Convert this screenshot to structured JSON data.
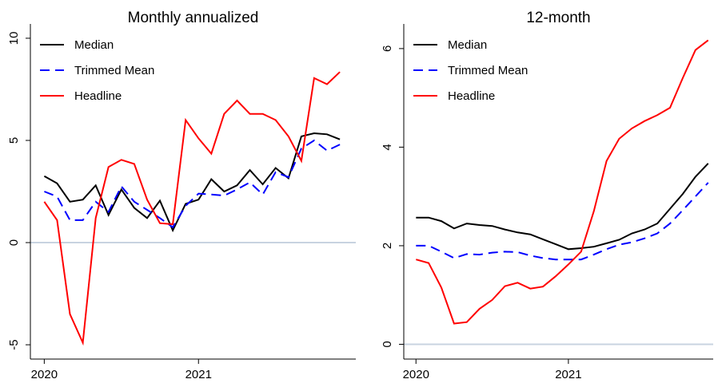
{
  "chart_data": [
    {
      "type": "line",
      "title": "Monthly annualized",
      "x": [
        2020,
        2020.0833,
        2020.1667,
        2020.25,
        2020.3333,
        2020.4167,
        2020.5,
        2020.5833,
        2020.6667,
        2020.75,
        2020.8333,
        2020.9167,
        2021,
        2021.0833,
        2021.1667,
        2021.25,
        2021.3333,
        2021.4167,
        2021.5,
        2021.5833,
        2021.6667,
        2021.75,
        2021.8333,
        2021.9167
      ],
      "series": [
        {
          "name": "Median",
          "color": "#000000",
          "dash": false,
          "values": [
            3.25,
            2.9,
            2.0,
            2.1,
            2.8,
            1.35,
            2.6,
            1.7,
            1.2,
            2.05,
            0.6,
            1.9,
            2.1,
            3.1,
            2.5,
            2.8,
            3.55,
            2.85,
            3.65,
            3.15,
            5.2,
            5.35,
            5.3,
            5.05
          ]
        },
        {
          "name": "Trimmed Mean",
          "color": "#0000ff",
          "dash": true,
          "values": [
            2.5,
            2.25,
            1.1,
            1.1,
            2.0,
            1.5,
            2.75,
            2.0,
            1.6,
            1.2,
            0.75,
            1.8,
            2.4,
            2.35,
            2.3,
            2.6,
            2.95,
            2.35,
            3.45,
            3.2,
            4.6,
            5.0,
            4.5,
            4.8
          ]
        },
        {
          "name": "Headline",
          "color": "#ff0000",
          "dash": false,
          "values": [
            2.0,
            1.1,
            -3.5,
            -4.9,
            1.2,
            3.7,
            4.05,
            3.85,
            2.1,
            0.95,
            0.9,
            6.0,
            5.1,
            4.35,
            6.3,
            6.95,
            6.3,
            6.3,
            6.0,
            5.2,
            4.0,
            8.05,
            7.75,
            8.35
          ]
        }
      ],
      "xlim": [
        2019.91,
        2022.02
      ],
      "xticks": [
        2020,
        2021
      ],
      "ylim": [
        -5.7,
        10.7
      ],
      "yticks": [
        -5,
        0,
        5,
        10
      ],
      "legend": "upper-left",
      "zero_line_color": "#c8d3e0"
    },
    {
      "type": "line",
      "title": "12-month",
      "x": [
        2020,
        2020.0833,
        2020.1667,
        2020.25,
        2020.3333,
        2020.4167,
        2020.5,
        2020.5833,
        2020.6667,
        2020.75,
        2020.8333,
        2020.9167,
        2021,
        2021.0833,
        2021.1667,
        2021.25,
        2021.3333,
        2021.4167,
        2021.5,
        2021.5833,
        2021.6667,
        2021.75,
        2021.8333,
        2021.9167
      ],
      "series": [
        {
          "name": "Median",
          "color": "#000000",
          "dash": false,
          "values": [
            2.57,
            2.57,
            2.5,
            2.35,
            2.45,
            2.42,
            2.4,
            2.33,
            2.27,
            2.23,
            2.13,
            2.03,
            1.93,
            1.95,
            1.98,
            2.05,
            2.12,
            2.25,
            2.33,
            2.45,
            2.75,
            3.05,
            3.4,
            3.67
          ]
        },
        {
          "name": "Trimmed Mean",
          "color": "#0000ff",
          "dash": true,
          "values": [
            2.0,
            2.0,
            1.88,
            1.75,
            1.83,
            1.82,
            1.86,
            1.88,
            1.87,
            1.8,
            1.75,
            1.72,
            1.72,
            1.72,
            1.82,
            1.93,
            2.02,
            2.07,
            2.15,
            2.25,
            2.45,
            2.72,
            3.0,
            3.28
          ]
        },
        {
          "name": "Headline",
          "color": "#ff0000",
          "dash": false,
          "values": [
            1.72,
            1.65,
            1.15,
            0.42,
            0.45,
            0.72,
            0.9,
            1.18,
            1.25,
            1.13,
            1.17,
            1.38,
            1.62,
            1.88,
            2.7,
            3.72,
            4.17,
            4.38,
            4.53,
            4.65,
            4.8,
            5.4,
            5.97,
            6.17
          ]
        }
      ],
      "xlim": [
        2019.92,
        2021.95
      ],
      "xticks": [
        2020,
        2021
      ],
      "ylim": [
        -0.3,
        6.5
      ],
      "yticks": [
        0,
        2,
        4,
        6
      ],
      "legend": "upper-left",
      "zero_line_color": "#c8d3e0"
    }
  ]
}
